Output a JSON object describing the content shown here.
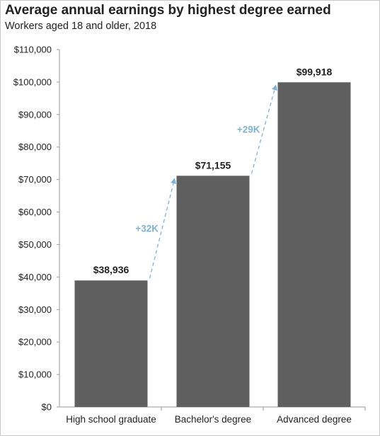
{
  "title": "Average annual earnings by highest degree earned",
  "subtitle": "Workers aged 18 and older, 2018",
  "colors": {
    "bar": "#5f5f5f",
    "arrow": "#7fb3d5",
    "text": "#222222",
    "axis": "#9a9a9a"
  },
  "chart_data": {
    "type": "bar",
    "title": "Average annual earnings by highest degree earned",
    "subtitle": "Workers aged 18 and older, 2018",
    "categories": [
      "High school graduate",
      "Bachelor's degree",
      "Advanced degree"
    ],
    "values": [
      38936,
      71155,
      99918
    ],
    "data_labels": [
      "$38,936",
      "$71,155",
      "$99,918"
    ],
    "ylim": [
      0,
      110000
    ],
    "yticks": [
      0,
      10000,
      20000,
      30000,
      40000,
      50000,
      60000,
      70000,
      80000,
      90000,
      100000,
      110000
    ],
    "ytick_labels": [
      "$0",
      "$10,000",
      "$20,000",
      "$30,000",
      "$40,000",
      "$50,000",
      "$60,000",
      "$70,000",
      "$80,000",
      "$90,000",
      "$100,000",
      "$110,000"
    ],
    "grid": false,
    "annotations": [
      {
        "from": 0,
        "to": 1,
        "label": "+32K"
      },
      {
        "from": 1,
        "to": 2,
        "label": "+29K"
      }
    ]
  }
}
